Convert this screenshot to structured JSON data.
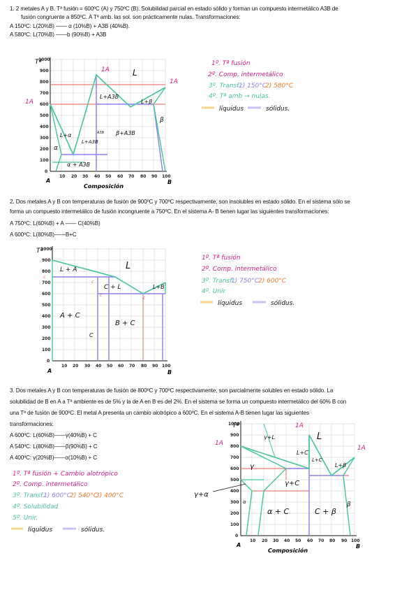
{
  "problems": [
    {
      "lines": [
        "1.    2 metales A y B. Tª fusión = 600ºC (A) y 750ºC (B). Solubilidad parcial en estado sólido y forman un compuesto intermetálico A3B de",
        "fusión congruente a 850ºC. A Tª amb. las sol. son prácticamente nulas. Transformaciones:",
        "A 150ºC: L(20%B) ——  α (10%B) + A3B (40%B).",
        "A 580ºC: L(70%B) ——b (90%B) + A3B"
      ],
      "diagram": {
        "y_title": "Tª",
        "x_title": "Composición",
        "y_ticks": [
          "1000",
          "900",
          "800",
          "700",
          "600",
          "500",
          "400",
          "300",
          "200",
          "100",
          "0"
        ],
        "x_ticks": [
          "10",
          "20",
          "30",
          "40",
          "50",
          "60",
          "70",
          "80",
          "90",
          "100"
        ],
        "end_left": "A",
        "end_right": "B",
        "region_labels": [
          "L",
          "L+A3B",
          "β+A3B",
          "L+β",
          "L+α",
          "α",
          "L+A3B",
          "α + A3B",
          "A3B",
          "β"
        ],
        "arrow_labels": [
          "1A",
          "1A",
          "1A"
        ]
      },
      "notes": [
        "1º. Tª fusión",
        "2º. Comp. intermetálico",
        "3º. Transf.:",
        "1) 150°C",
        "2) 580°C",
        "4º. Tª amb → nulas.",
        "líquidus",
        "sólidus."
      ]
    },
    {
      "lines": [
        "2. Dos metales A y B con temperaturas de fusión de 900ºC y 700ºC respectivamente, son insolubles en estado sólido. En el sistema sólo se",
        "forma un compuesto intermetálico de fusión incongruente a 750ºC. En el sistema A- B tienen lugar las siguientes transformaciones:",
        "A 750ºC: L(60%B) + A —— C(40%B)",
        "A 600ºC: L(80%B)——B+C"
      ],
      "diagram": {
        "y_title": "Tª",
        "x_title": "",
        "y_ticks": [
          "1000",
          "900",
          "800",
          "700",
          "600",
          "500",
          "400",
          "300",
          "200",
          "100",
          "0"
        ],
        "x_ticks": [
          "10",
          "20",
          "30",
          "40",
          "50",
          "60",
          "70",
          "80",
          "90",
          "100"
        ],
        "end_left": "A",
        "end_right": "B",
        "region_labels": [
          "L",
          "L + A",
          "C + L",
          "L+B",
          "A + C",
          "B + C",
          "C"
        ],
        "point_labels": [
          "c",
          "c",
          "c",
          "c"
        ]
      },
      "notes": [
        "1º. Tª fusión",
        "2º. Comp. intermetálico",
        "3º. Transf.:",
        "1) 750°C",
        "2) 600°C",
        "4º. Unir",
        "líquidus",
        "sólidus."
      ]
    },
    {
      "lines": [
        "3. Dos metales A y B con temperaturas de fusión de 800ºC y 700ºC respectivamente, son parcialmente solubles en estado sólido. La",
        "solubilidad de B en A a Tª ambiente es de 5% y la de A en B es del 2%. En el sistema se forma un compuesto intermetálico del 60% B con",
        "una Tª de fusión de 900ºC. El metal A presenta un cambio alotrópico a 600ºC. En el sistema A-B tienen lugar las siguientes",
        "transformaciones:",
        "A 600ºC: L(60%B)——γ(40%B) + C",
        "A 540ºC: L(80%B)——β(90%B) + C",
        "A 400ºC: γ(20%B)——α(10%B) + C"
      ],
      "diagram": {
        "y_title": "Tª",
        "x_title": "Composición",
        "y_ticks": [
          "1000",
          "900",
          "800",
          "700",
          "600",
          "500",
          "400",
          "300",
          "200",
          "100",
          "0"
        ],
        "x_ticks": [
          "10",
          "20",
          "30",
          "40",
          "50",
          "60",
          "70",
          "80",
          "90",
          "100"
        ],
        "end_left": "A",
        "end_right": "B",
        "region_labels": [
          "L",
          "γ+L",
          "L+C",
          "L+C",
          "L+β",
          "γ",
          "γ+C",
          "α + C",
          "C + β",
          "β",
          "α"
        ],
        "side_label": "γ+α",
        "arrow_labels": [
          "1A",
          "1A",
          "1A"
        ]
      },
      "notes": [
        "1º. Tª fusión + Cambio alotrópico",
        "2º. Comp. intermetálico",
        "3º. Transf.:",
        "1) 600°C",
        "2) 540°C",
        "3) 400°C",
        "4º. Solubilidad",
        "5º. Unir.",
        "líquidus",
        "sólidus."
      ]
    }
  ],
  "colors": {
    "text": "#111111",
    "note_pink": "#d81b85",
    "note_orange": "#f07a2a",
    "liquidus": "#42c79a",
    "solidus": "#8f7cf0",
    "phase_line_red": "#e85a5a",
    "grid": "#bbbbbb",
    "highlight_yellow": "#f6d78a",
    "highlight_lavender": "#c8c2f6"
  }
}
